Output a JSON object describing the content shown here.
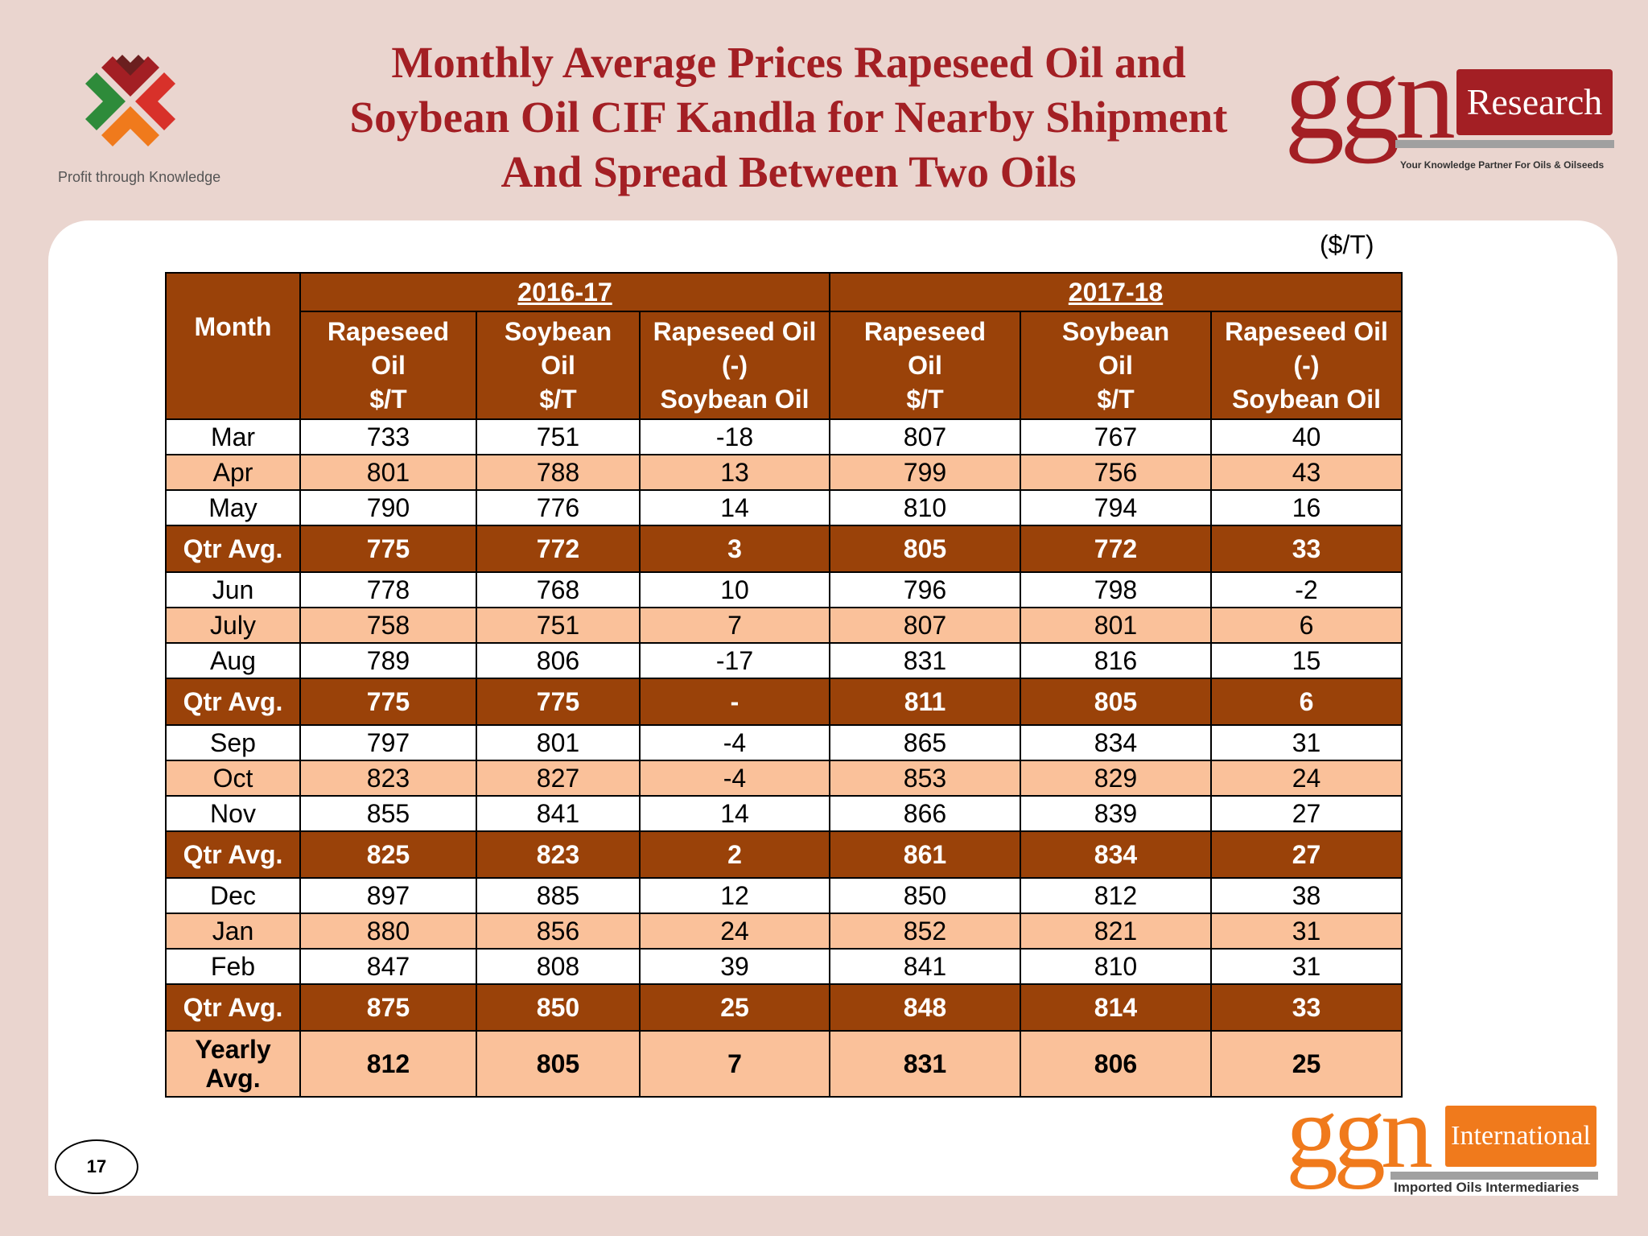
{
  "title": {
    "line1": "Monthly Average Prices Rapeseed Oil and",
    "line2": "Soybean Oil CIF Kandla for Nearby Shipment",
    "line3": "And Spread Between Two Oils"
  },
  "logo_left": {
    "tagline": "Profit through Knowledge"
  },
  "logo_right": {
    "brand": "ggn",
    "label": "Research",
    "tagline": "Your Knowledge Partner For Oils & Oilseeds"
  },
  "logo_bottom": {
    "brand": "ggn",
    "label": "International",
    "tagline": "Imported Oils Intermediaries"
  },
  "unit_label": "($/T)",
  "page_number": "17",
  "table": {
    "month_header": "Month",
    "year_headers": [
      "2016-17",
      "2017-18"
    ],
    "column_headers": [
      [
        "Rapeseed",
        "Oil",
        "$/T"
      ],
      [
        "Soybean",
        "Oil",
        "$/T"
      ],
      [
        "Rapeseed Oil",
        "(-)",
        "Soybean Oil"
      ],
      [
        "Rapeseed",
        "Oil",
        "$/T"
      ],
      [
        "Soybean",
        "Oil",
        "$/T"
      ],
      [
        "Rapeseed Oil",
        "(-)",
        "Soybean Oil"
      ]
    ],
    "rows": [
      {
        "type": "month",
        "shade": "white",
        "month": "Mar",
        "values": [
          "733",
          "751",
          "-18",
          "807",
          "767",
          "40"
        ]
      },
      {
        "type": "month",
        "shade": "peach",
        "month": "Apr",
        "values": [
          "801",
          "788",
          "13",
          "799",
          "756",
          "43"
        ]
      },
      {
        "type": "month",
        "shade": "white",
        "month": "May",
        "values": [
          "790",
          "776",
          "14",
          "810",
          "794",
          "16"
        ]
      },
      {
        "type": "qtr",
        "month": "Qtr Avg.",
        "values": [
          "775",
          "772",
          "3",
          "805",
          "772",
          "33"
        ]
      },
      {
        "type": "month",
        "shade": "white",
        "month": "Jun",
        "values": [
          "778",
          "768",
          "10",
          "796",
          "798",
          "-2"
        ]
      },
      {
        "type": "month",
        "shade": "peach",
        "month": "July",
        "values": [
          "758",
          "751",
          "7",
          "807",
          "801",
          "6"
        ]
      },
      {
        "type": "month",
        "shade": "white",
        "month": "Aug",
        "values": [
          "789",
          "806",
          "-17",
          "831",
          "816",
          "15"
        ]
      },
      {
        "type": "qtr",
        "month": "Qtr Avg.",
        "values": [
          "775",
          "775",
          "-",
          "811",
          "805",
          "6"
        ]
      },
      {
        "type": "month",
        "shade": "white",
        "month": "Sep",
        "values": [
          "797",
          "801",
          "-4",
          "865",
          "834",
          "31"
        ]
      },
      {
        "type": "month",
        "shade": "peach",
        "month": "Oct",
        "values": [
          "823",
          "827",
          "-4",
          "853",
          "829",
          "24"
        ]
      },
      {
        "type": "month",
        "shade": "white",
        "month": "Nov",
        "values": [
          "855",
          "841",
          "14",
          "866",
          "839",
          "27"
        ]
      },
      {
        "type": "qtr",
        "month": "Qtr Avg.",
        "values": [
          "825",
          "823",
          "2",
          "861",
          "834",
          "27"
        ]
      },
      {
        "type": "month",
        "shade": "white",
        "month": "Dec",
        "values": [
          "897",
          "885",
          "12",
          "850",
          "812",
          "38"
        ]
      },
      {
        "type": "month",
        "shade": "peach",
        "month": "Jan",
        "values": [
          "880",
          "856",
          "24",
          "852",
          "821",
          "31"
        ]
      },
      {
        "type": "month",
        "shade": "white",
        "month": "Feb",
        "values": [
          "847",
          "808",
          "39",
          "841",
          "810",
          "31"
        ]
      },
      {
        "type": "qtr",
        "month": "Qtr Avg.",
        "values": [
          "875",
          "850",
          "25",
          "848",
          "814",
          "33"
        ]
      },
      {
        "type": "year",
        "month": "Yearly Avg.",
        "values": [
          "812",
          "805",
          "7",
          "831",
          "806",
          "25"
        ]
      }
    ]
  },
  "colors": {
    "title_red": "#a31f24",
    "header_brown": "#9a4209",
    "row_peach": "#fac19a",
    "accent_orange": "#f07a1c",
    "background": "#ead5cf"
  }
}
